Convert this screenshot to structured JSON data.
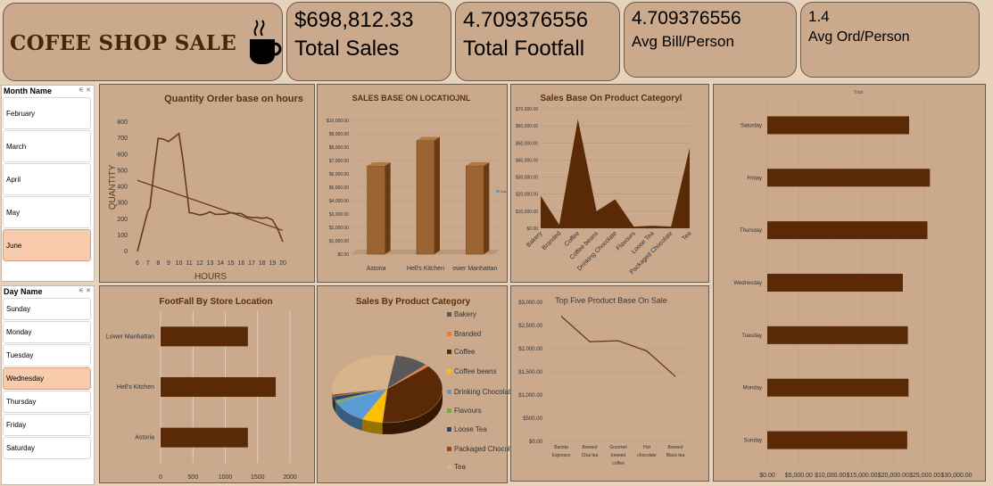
{
  "header": {
    "title": "COFEE SHOP  SALE",
    "cup_icon": "coffee-cup-icon"
  },
  "kpis": [
    {
      "value": "$698,812.33",
      "label": "Total Sales"
    },
    {
      "value": "4.709376556",
      "label": "Total Footfall"
    },
    {
      "value": "4.709376556",
      "label": "Avg Bill/Person"
    },
    {
      "value": "1.4",
      "label": "Avg Ord/Person"
    }
  ],
  "slicers": {
    "month": {
      "title": "Month Name",
      "items": [
        "February",
        "March",
        "April",
        "May",
        "June"
      ],
      "selected": "June"
    },
    "day": {
      "title": "Day Name",
      "items": [
        "Sunday",
        "Monday",
        "Tuesday",
        "Wednesday",
        "Thursday",
        "Friday",
        "Saturday"
      ],
      "selected": "Wednesday"
    }
  },
  "chart_data": [
    {
      "id": "hours",
      "type": "line",
      "title": "Quantity Order base on hours",
      "xlabel": "HOURS",
      "ylabel": "QUANTITY",
      "x": [
        6,
        7,
        8,
        9,
        10,
        11,
        12,
        13,
        14,
        15,
        16,
        17,
        18,
        19,
        20
      ],
      "y_ticks": [
        "0",
        "100",
        "200",
        "300",
        "400",
        "500",
        "600",
        "700",
        "800"
      ],
      "ylim": [
        0,
        800
      ],
      "series": [
        {
          "x": [
            6,
            7,
            7.2,
            7.6,
            8,
            8.5,
            9,
            9.4,
            10,
            10.4,
            11,
            11.3,
            12,
            12.5,
            13,
            13.5,
            14,
            14.5,
            15,
            15.5,
            16,
            16.5,
            17,
            17.5,
            18,
            18.5,
            19,
            19.5,
            20
          ],
          "values": [
            0,
            250,
            270,
            500,
            700,
            695,
            680,
            700,
            730,
            560,
            240,
            238,
            225,
            232,
            245,
            230,
            230,
            232,
            240,
            235,
            235,
            215,
            210,
            210,
            205,
            210,
            195,
            140,
            60
          ]
        },
        {
          "x": [
            6,
            20
          ],
          "values": [
            440,
            130
          ]
        }
      ]
    },
    {
      "id": "location",
      "type": "bar",
      "title": "SALES BASE ON LOCATIOJNL",
      "categories": [
        "Astoria",
        "Hell's Kitchen",
        "Lower Manhattan"
      ],
      "category_ticks": [
        "Astoria",
        "Hell's Kitchen",
        "ower Manhattan"
      ],
      "values": [
        6600,
        8500,
        6600
      ],
      "ylim": [
        0,
        10000
      ],
      "y_ticks": [
        "$0.00",
        "$1,000.00",
        "$2,000.00",
        "$3,000.00",
        "$4,000.00",
        "$5,000.00",
        "$6,000.00",
        "$7,000.00",
        "$8,000.00",
        "$9,000.00",
        "$10,000.00"
      ],
      "legend": "Total"
    },
    {
      "id": "category",
      "type": "area",
      "title": "Sales Base On Product Categoryl",
      "categories": [
        "Bakery",
        "Branded",
        "Coffee",
        "Coffee beans",
        "Drinking Chocolate",
        "Flavours",
        "Loose Tea",
        "Packaged Chocolate",
        "Tea"
      ],
      "values": [
        19000,
        2000,
        64000,
        10000,
        17000,
        1000,
        1500,
        1000,
        47000
      ],
      "ylim": [
        0,
        70000
      ],
      "y_ticks": [
        "$0.00",
        "$10,000.00",
        "$20,000.00",
        "$30,000.00",
        "$40,000.00",
        "$50,000.00",
        "$60,000.00",
        "$70,000.00"
      ]
    },
    {
      "id": "days",
      "type": "bar",
      "orientation": "horizontal",
      "title": "Total",
      "categories": [
        "Saturday",
        "Friday",
        "Thursday",
        "Wednesday",
        "Tuesday",
        "Monday",
        "Sunday"
      ],
      "values": [
        22500,
        25800,
        25400,
        21500,
        22300,
        22400,
        22200
      ],
      "xlim": [
        0,
        30000
      ],
      "x_ticks": [
        "$0.00",
        "$5,000.00",
        "$10,000.00",
        "$15,000.00",
        "$20,000.00",
        "$25,000.00",
        "$30,000.00"
      ]
    },
    {
      "id": "footfall",
      "type": "bar",
      "orientation": "horizontal",
      "title": "FootFall By Store Location",
      "categories": [
        "Lower Manhattan",
        "Hell's Kitchen",
        "Astoria"
      ],
      "category_ticks": [
        "Lower Manhattan",
        "Hell's Kitchen",
        "Astoria"
      ],
      "values": [
        1350,
        1780,
        1350
      ],
      "xlim": [
        0,
        2000
      ],
      "x_ticks": [
        "0",
        "500",
        "1000",
        "1500",
        "2000"
      ]
    },
    {
      "id": "pie",
      "type": "pie",
      "title": "Sales By Product Category",
      "slices": [
        {
          "label": "Bakery",
          "value": 10,
          "color": "#595959"
        },
        {
          "label": "Branded",
          "value": 1,
          "color": "#ed7d31"
        },
        {
          "label": "Coffee",
          "value": 38,
          "color": "#5a2a06"
        },
        {
          "label": "Coffee beans",
          "value": 6,
          "color": "#ffc000"
        },
        {
          "label": "Drinking Chocolate",
          "value": 11,
          "color": "#5b9bd5"
        },
        {
          "label": "Flavours",
          "value": 1,
          "color": "#70ad47"
        },
        {
          "label": "Loose Tea",
          "value": 2,
          "color": "#264478"
        },
        {
          "label": "Packaged Chocolate",
          "value": 1,
          "color": "#9e480e"
        },
        {
          "label": "Tea",
          "value": 30,
          "color": "#d8b48c"
        }
      ]
    },
    {
      "id": "top5",
      "type": "line",
      "title": "Top Five Product Base On Sale",
      "categories": [
        "Barista Espresso",
        "Brewed Chai tea",
        "Gourmet brewed coffee",
        "Hot chocolate",
        "Brewed Black tea"
      ],
      "category_ticks": [
        [
          "Barista",
          "Espresso"
        ],
        [
          "Brewed",
          "Chai tea"
        ],
        [
          "Gourmet",
          "brewed",
          "coffee"
        ],
        [
          "Hot",
          "chocolate"
        ],
        [
          "Brewed",
          "Black tea"
        ]
      ],
      "values": [
        2700,
        2150,
        2170,
        1950,
        1400
      ],
      "ylim": [
        0,
        3000
      ],
      "y_ticks": [
        "$0.00",
        "$500.00",
        "$1,000.00",
        "$1,500.00",
        "$2,000.00",
        "$2,500.00",
        "$3,000.00"
      ]
    }
  ],
  "colors": {
    "bar": "#5a2a06",
    "bar3d_front": "#9a6532",
    "line": "#6a3a12",
    "background": "#e7d2bc",
    "panel": "#caa98d"
  }
}
